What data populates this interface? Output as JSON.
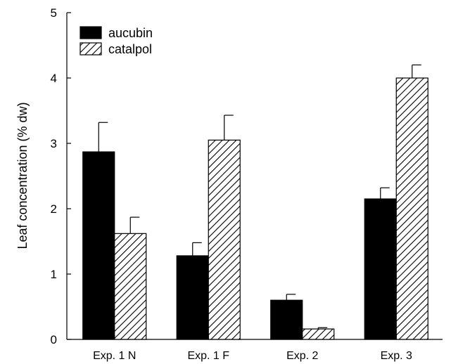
{
  "chart_data": {
    "type": "bar",
    "title": "",
    "xlabel": "",
    "ylabel": "Leaf concentration (% dw)",
    "ylim": [
      0,
      5
    ],
    "yticks": [
      "0",
      "1",
      "2",
      "3",
      "4",
      "5"
    ],
    "categories": [
      "Exp. 1 N",
      "Exp. 1 F",
      "Exp. 2",
      "Exp. 3"
    ],
    "series": [
      {
        "name": "aucubin",
        "fill": "solid",
        "color": "#000000",
        "values": [
          2.87,
          1.28,
          0.6,
          2.15
        ],
        "errors": [
          0.45,
          0.2,
          0.09,
          0.17
        ]
      },
      {
        "name": "catalpol",
        "fill": "hatched",
        "color": "#000000",
        "values": [
          1.62,
          3.05,
          0.16,
          4.0
        ],
        "errors": [
          0.25,
          0.38,
          0.02,
          0.2
        ]
      }
    ],
    "legend_position": "top-left",
    "grid": false
  }
}
